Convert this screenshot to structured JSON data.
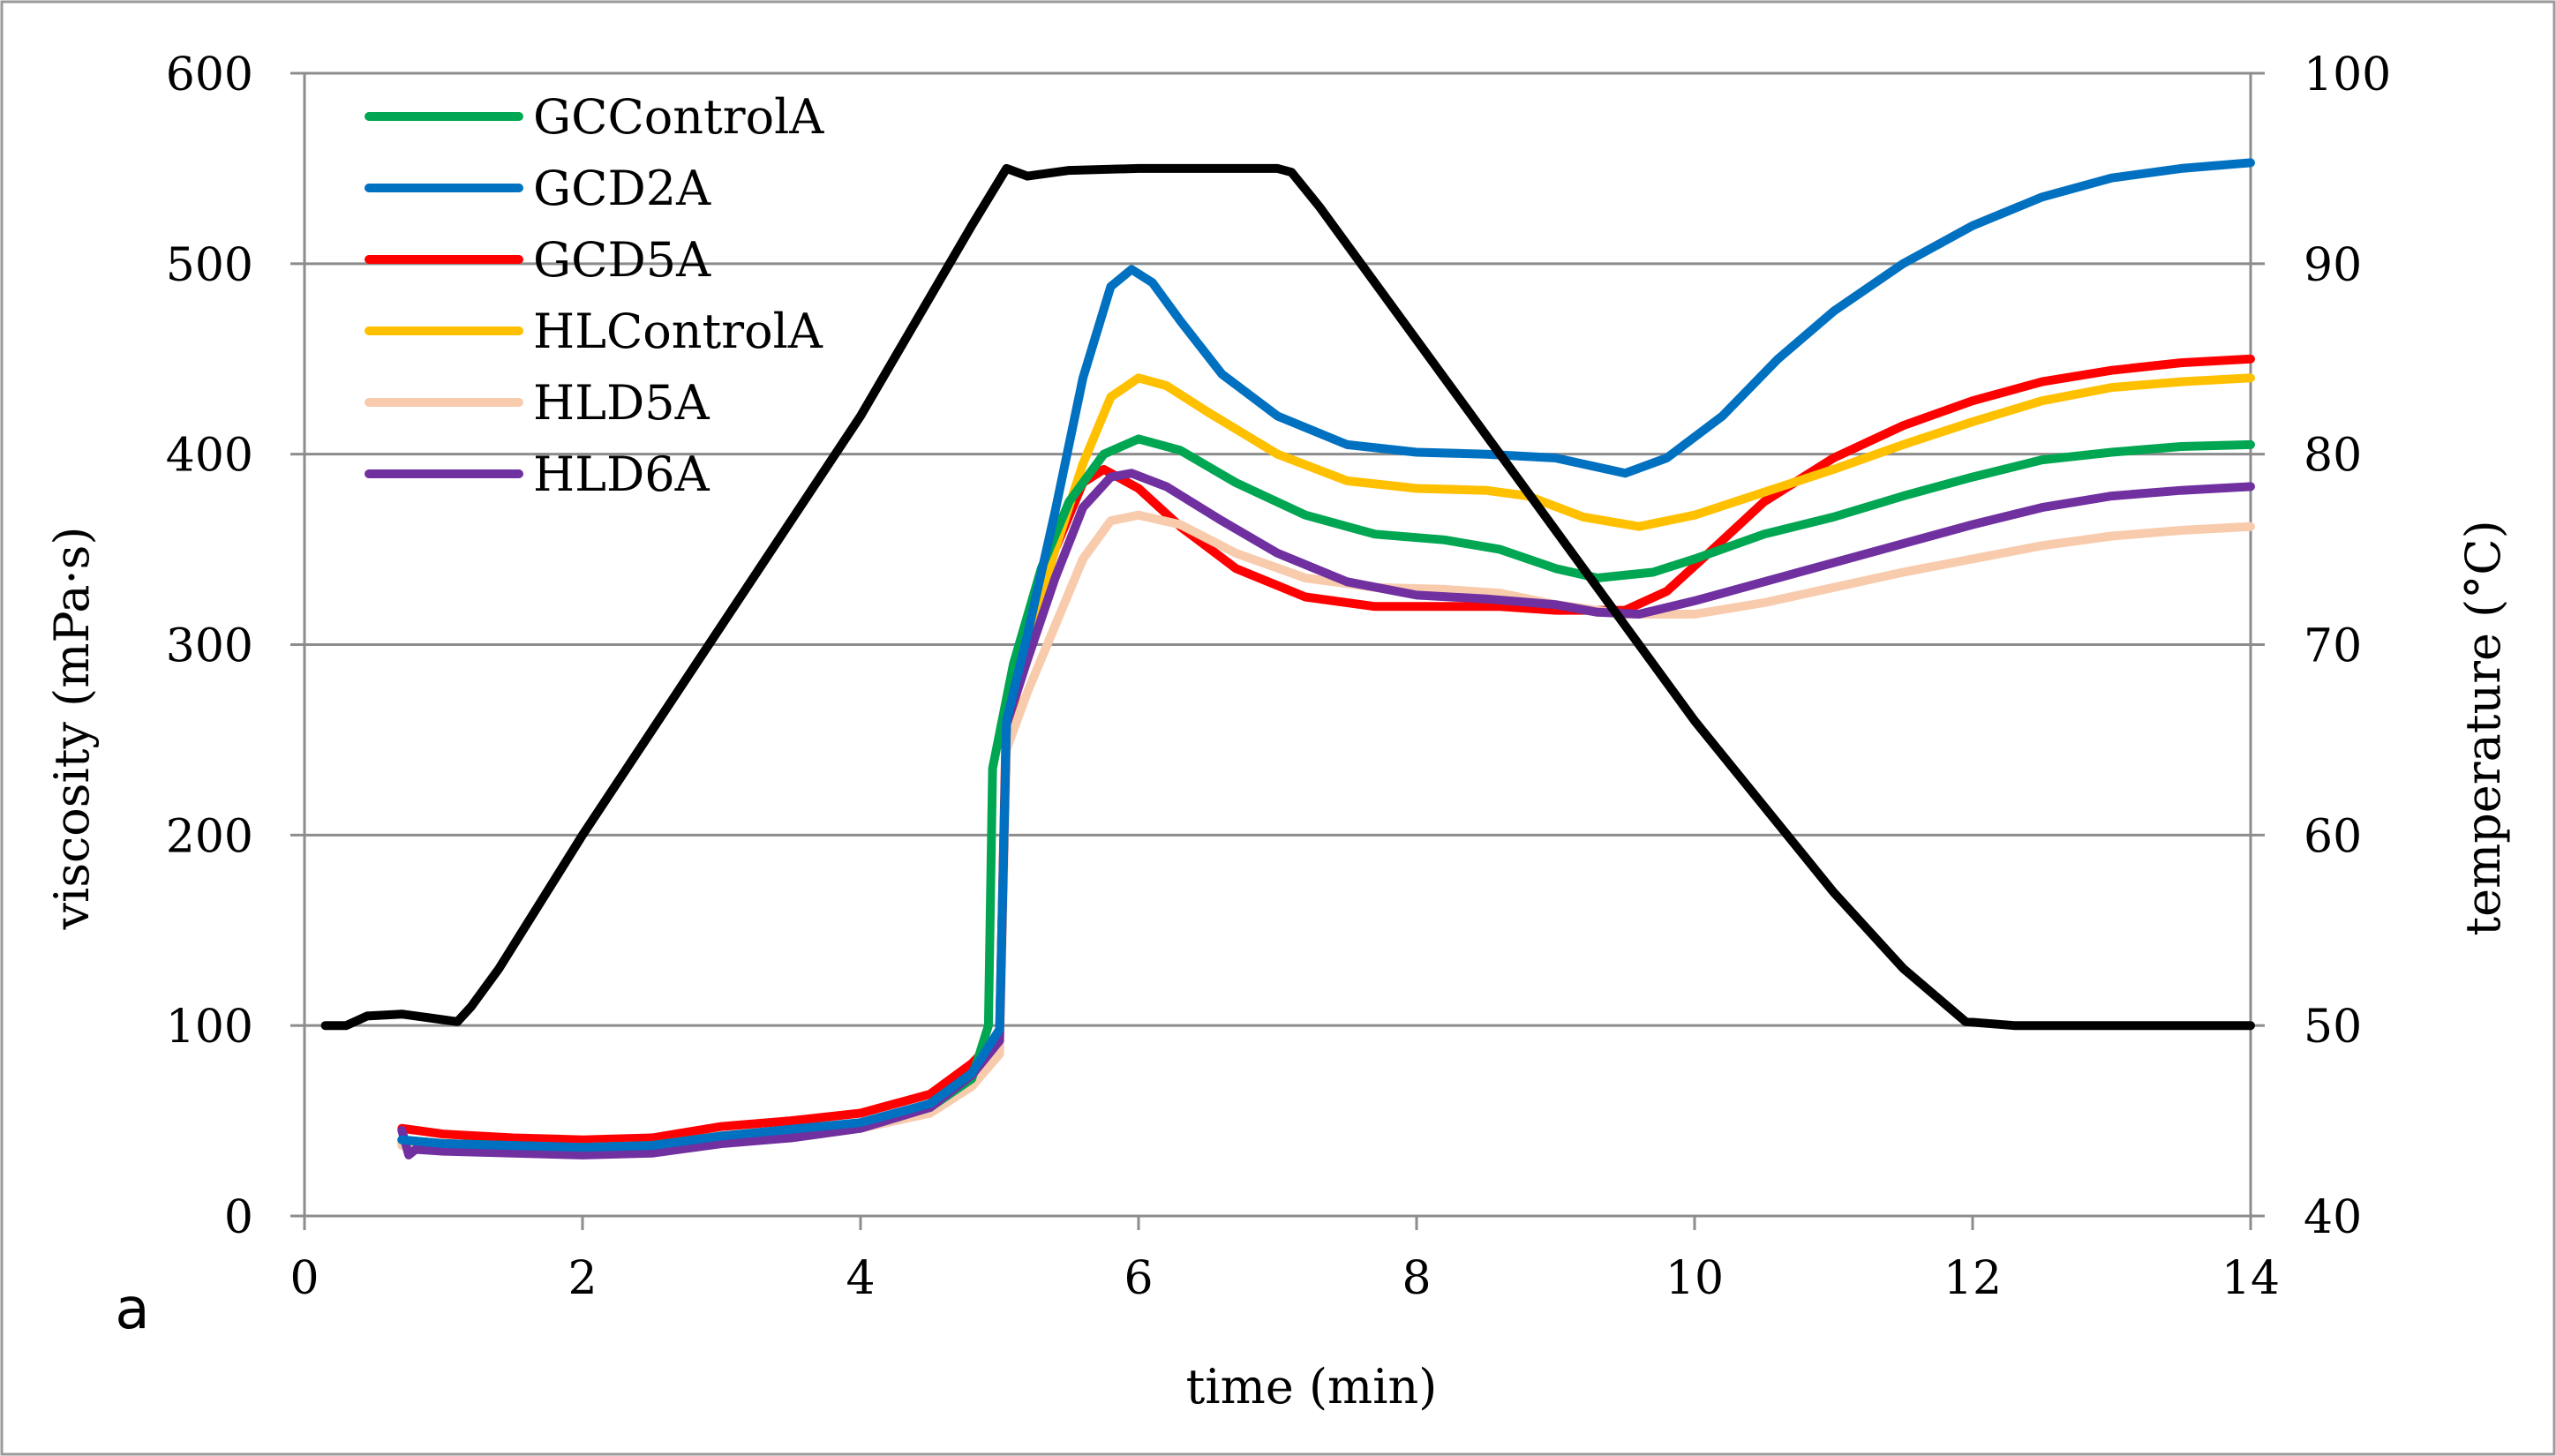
{
  "chart_data": {
    "type": "line",
    "panel_label": "a",
    "xlabel": "time (min)",
    "ylabel": "viscosity (mPa·s)",
    "y2label": "temperature (°C)",
    "xlim": [
      0,
      14
    ],
    "ylim": [
      0,
      600
    ],
    "y2lim": [
      40,
      100
    ],
    "xticks": [
      "0",
      "2",
      "4",
      "6",
      "8",
      "10",
      "12",
      "14"
    ],
    "yticks": [
      "0",
      "100",
      "200",
      "300",
      "400",
      "500",
      "600"
    ],
    "y2ticks": [
      "40",
      "50",
      "60",
      "70",
      "80",
      "90",
      "100"
    ],
    "grid": true,
    "legend_position": "top-left",
    "series": [
      {
        "name": "GCControlA",
        "color": "#00a651",
        "axis": "left",
        "points": [
          [
            0.7,
            40
          ],
          [
            1.0,
            38
          ],
          [
            2.0,
            36
          ],
          [
            2.5,
            37
          ],
          [
            3.0,
            42
          ],
          [
            4.0,
            48
          ],
          [
            4.5,
            57
          ],
          [
            4.8,
            72
          ],
          [
            4.92,
            100
          ],
          [
            4.95,
            235
          ],
          [
            5.1,
            290
          ],
          [
            5.3,
            340
          ],
          [
            5.5,
            375
          ],
          [
            5.75,
            400
          ],
          [
            6.0,
            408
          ],
          [
            6.3,
            402
          ],
          [
            6.7,
            385
          ],
          [
            7.2,
            368
          ],
          [
            7.7,
            358
          ],
          [
            8.2,
            355
          ],
          [
            8.6,
            350
          ],
          [
            9.0,
            340
          ],
          [
            9.3,
            335
          ],
          [
            9.7,
            338
          ],
          [
            10.0,
            345
          ],
          [
            10.5,
            358
          ],
          [
            11.0,
            367
          ],
          [
            11.5,
            378
          ],
          [
            12.0,
            388
          ],
          [
            12.5,
            397
          ],
          [
            13.0,
            401
          ],
          [
            13.5,
            404
          ],
          [
            14.0,
            405
          ]
        ]
      },
      {
        "name": "GCD2A",
        "color": "#0070c0",
        "axis": "left",
        "points": [
          [
            0.7,
            40
          ],
          [
            1.0,
            38
          ],
          [
            2.0,
            36
          ],
          [
            2.5,
            37
          ],
          [
            3.0,
            42
          ],
          [
            4.0,
            49
          ],
          [
            4.5,
            59
          ],
          [
            4.8,
            75
          ],
          [
            5.0,
            98
          ],
          [
            5.05,
            260
          ],
          [
            5.2,
            305
          ],
          [
            5.4,
            370
          ],
          [
            5.6,
            440
          ],
          [
            5.8,
            488
          ],
          [
            5.95,
            497
          ],
          [
            6.1,
            490
          ],
          [
            6.3,
            470
          ],
          [
            6.6,
            442
          ],
          [
            7.0,
            420
          ],
          [
            7.5,
            405
          ],
          [
            8.0,
            401
          ],
          [
            8.5,
            400
          ],
          [
            9.0,
            398
          ],
          [
            9.5,
            390
          ],
          [
            9.8,
            398
          ],
          [
            10.2,
            420
          ],
          [
            10.6,
            450
          ],
          [
            11.0,
            475
          ],
          [
            11.5,
            500
          ],
          [
            12.0,
            520
          ],
          [
            12.5,
            535
          ],
          [
            13.0,
            545
          ],
          [
            13.5,
            550
          ],
          [
            14.0,
            553
          ]
        ]
      },
      {
        "name": "GCD5A",
        "color": "#ff0000",
        "axis": "left",
        "points": [
          [
            0.7,
            46
          ],
          [
            1.0,
            43
          ],
          [
            1.5,
            41
          ],
          [
            2.0,
            40
          ],
          [
            2.5,
            41
          ],
          [
            3.0,
            47
          ],
          [
            3.5,
            50
          ],
          [
            4.0,
            54
          ],
          [
            4.5,
            64
          ],
          [
            4.8,
            80
          ],
          [
            5.0,
            95
          ],
          [
            5.05,
            268
          ],
          [
            5.2,
            300
          ],
          [
            5.4,
            350
          ],
          [
            5.6,
            385
          ],
          [
            5.75,
            392
          ],
          [
            6.0,
            382
          ],
          [
            6.3,
            362
          ],
          [
            6.7,
            340
          ],
          [
            7.2,
            325
          ],
          [
            7.7,
            320
          ],
          [
            8.2,
            320
          ],
          [
            8.6,
            320
          ],
          [
            9.0,
            318
          ],
          [
            9.5,
            318
          ],
          [
            9.8,
            328
          ],
          [
            10.1,
            348
          ],
          [
            10.5,
            375
          ],
          [
            11.0,
            398
          ],
          [
            11.5,
            415
          ],
          [
            12.0,
            428
          ],
          [
            12.5,
            438
          ],
          [
            13.0,
            444
          ],
          [
            13.5,
            448
          ],
          [
            14.0,
            450
          ]
        ]
      },
      {
        "name": "HLControlA",
        "color": "#ffc000",
        "axis": "left",
        "points": [
          [
            0.7,
            38
          ],
          [
            1.0,
            37
          ],
          [
            2.0,
            36
          ],
          [
            2.5,
            37
          ],
          [
            3.0,
            42
          ],
          [
            4.0,
            48
          ],
          [
            4.5,
            56
          ],
          [
            4.8,
            70
          ],
          [
            5.0,
            90
          ],
          [
            5.05,
            250
          ],
          [
            5.2,
            300
          ],
          [
            5.4,
            350
          ],
          [
            5.6,
            395
          ],
          [
            5.8,
            430
          ],
          [
            6.0,
            440
          ],
          [
            6.2,
            436
          ],
          [
            6.5,
            422
          ],
          [
            7.0,
            400
          ],
          [
            7.5,
            386
          ],
          [
            8.0,
            382
          ],
          [
            8.5,
            381
          ],
          [
            8.8,
            378
          ],
          [
            9.2,
            367
          ],
          [
            9.6,
            362
          ],
          [
            10.0,
            368
          ],
          [
            10.5,
            380
          ],
          [
            11.0,
            392
          ],
          [
            11.5,
            405
          ],
          [
            12.0,
            417
          ],
          [
            12.5,
            428
          ],
          [
            13.0,
            435
          ],
          [
            13.5,
            438
          ],
          [
            14.0,
            440
          ]
        ]
      },
      {
        "name": "HLD5A",
        "color": "#f8cbad",
        "axis": "left",
        "points": [
          [
            0.7,
            37
          ],
          [
            1.0,
            36
          ],
          [
            2.0,
            35
          ],
          [
            2.5,
            36
          ],
          [
            3.0,
            41
          ],
          [
            4.0,
            46
          ],
          [
            4.5,
            54
          ],
          [
            4.8,
            68
          ],
          [
            5.0,
            85
          ],
          [
            5.05,
            245
          ],
          [
            5.2,
            275
          ],
          [
            5.4,
            310
          ],
          [
            5.6,
            345
          ],
          [
            5.8,
            365
          ],
          [
            6.0,
            368
          ],
          [
            6.3,
            363
          ],
          [
            6.7,
            348
          ],
          [
            7.2,
            335
          ],
          [
            7.7,
            330
          ],
          [
            8.2,
            329
          ],
          [
            8.6,
            327
          ],
          [
            9.0,
            321
          ],
          [
            9.5,
            316
          ],
          [
            10.0,
            316
          ],
          [
            10.5,
            322
          ],
          [
            11.0,
            330
          ],
          [
            11.5,
            338
          ],
          [
            12.0,
            345
          ],
          [
            12.5,
            352
          ],
          [
            13.0,
            357
          ],
          [
            13.5,
            360
          ],
          [
            14.0,
            362
          ]
        ]
      },
      {
        "name": "HLD6A",
        "color": "#7030a0",
        "axis": "left",
        "points": [
          [
            0.7,
            45
          ],
          [
            0.75,
            32
          ],
          [
            0.8,
            35
          ],
          [
            1.0,
            34
          ],
          [
            1.5,
            33
          ],
          [
            2.0,
            32
          ],
          [
            2.5,
            33
          ],
          [
            3.0,
            38
          ],
          [
            3.5,
            41
          ],
          [
            4.0,
            46
          ],
          [
            4.5,
            57
          ],
          [
            4.8,
            74
          ],
          [
            5.0,
            92
          ],
          [
            5.05,
            258
          ],
          [
            5.2,
            292
          ],
          [
            5.4,
            335
          ],
          [
            5.6,
            372
          ],
          [
            5.8,
            388
          ],
          [
            5.95,
            390
          ],
          [
            6.2,
            383
          ],
          [
            6.6,
            365
          ],
          [
            7.0,
            348
          ],
          [
            7.5,
            333
          ],
          [
            8.0,
            326
          ],
          [
            8.5,
            324
          ],
          [
            9.0,
            321
          ],
          [
            9.3,
            317
          ],
          [
            9.6,
            316
          ],
          [
            10.0,
            323
          ],
          [
            10.5,
            333
          ],
          [
            11.0,
            343
          ],
          [
            11.5,
            353
          ],
          [
            12.0,
            363
          ],
          [
            12.5,
            372
          ],
          [
            13.0,
            378
          ],
          [
            13.5,
            381
          ],
          [
            14.0,
            383
          ]
        ]
      },
      {
        "name": "temperature",
        "color": "#000000",
        "axis": "right",
        "points": [
          [
            0.15,
            50
          ],
          [
            0.3,
            50
          ],
          [
            0.45,
            50.5
          ],
          [
            0.7,
            50.6
          ],
          [
            0.9,
            50.4
          ],
          [
            1.1,
            50.2
          ],
          [
            1.2,
            51
          ],
          [
            1.4,
            53
          ],
          [
            2.0,
            60
          ],
          [
            3.0,
            71
          ],
          [
            4.0,
            82
          ],
          [
            4.8,
            92
          ],
          [
            5.05,
            95
          ],
          [
            5.2,
            94.6
          ],
          [
            5.5,
            94.9
          ],
          [
            6.0,
            95
          ],
          [
            7.0,
            95
          ],
          [
            7.1,
            94.8
          ],
          [
            7.3,
            93
          ],
          [
            8.0,
            86
          ],
          [
            9.0,
            76
          ],
          [
            10.0,
            66
          ],
          [
            11.0,
            57
          ],
          [
            11.5,
            53
          ],
          [
            11.95,
            50.2
          ],
          [
            12.3,
            50
          ],
          [
            13.0,
            50
          ],
          [
            14.0,
            50
          ]
        ]
      }
    ]
  }
}
